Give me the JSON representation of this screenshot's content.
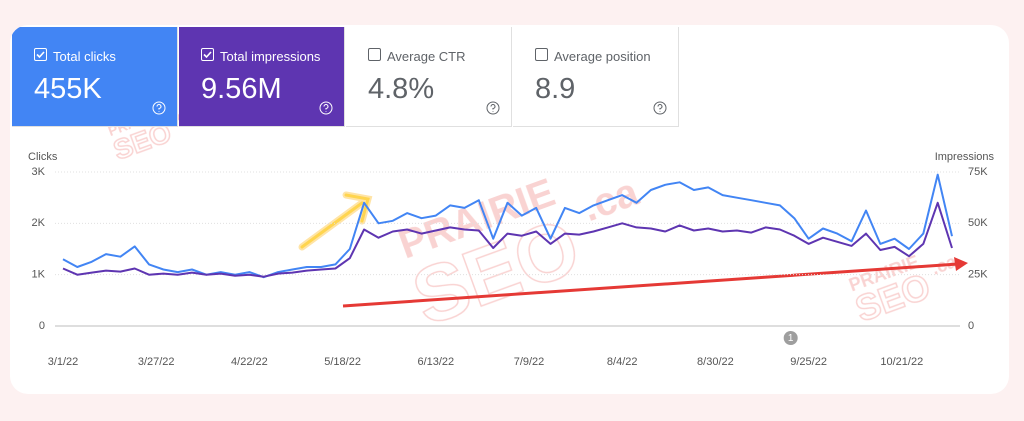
{
  "cards": [
    {
      "label": "Total clicks",
      "value": "455K",
      "selected": true,
      "color": "#4285f4"
    },
    {
      "label": "Total impressions",
      "value": "9.56M",
      "selected": true,
      "color": "#5e35b1"
    },
    {
      "label": "Average CTR",
      "value": "4.8%",
      "selected": false,
      "color": "#ffffff"
    },
    {
      "label": "Average position",
      "value": "8.9",
      "selected": false,
      "color": "#ffffff"
    }
  ],
  "chart_data": {
    "type": "line",
    "y_label": "Clicks",
    "y2_label": "Impressions",
    "x": [
      "3/1/22",
      "3/5/22",
      "3/9/22",
      "3/13/22",
      "3/17/22",
      "3/21/22",
      "3/25/22",
      "3/29/22",
      "4/2/22",
      "4/6/22",
      "4/10/22",
      "4/14/22",
      "4/18/22",
      "4/22/22",
      "4/26/22",
      "4/30/22",
      "5/4/22",
      "5/8/22",
      "5/12/22",
      "5/16/22",
      "5/20/22",
      "5/24/22",
      "5/28/22",
      "6/1/22",
      "6/5/22",
      "6/9/22",
      "6/13/22",
      "6/17/22",
      "6/21/22",
      "6/25/22",
      "6/29/22",
      "7/3/22",
      "7/7/22",
      "7/11/22",
      "7/15/22",
      "7/19/22",
      "7/23/22",
      "7/27/22",
      "7/31/22",
      "8/4/22",
      "8/8/22",
      "8/12/22",
      "8/16/22",
      "8/20/22",
      "8/24/22",
      "8/28/22",
      "9/1/22",
      "9/5/22",
      "9/9/22",
      "9/13/22",
      "9/17/22",
      "9/21/22",
      "9/25/22",
      "9/29/22",
      "10/3/22",
      "10/7/22",
      "10/11/22",
      "10/15/22",
      "10/19/22",
      "10/23/22",
      "10/27/22",
      "10/31/22",
      "11/4/22"
    ],
    "xlim": [
      "3/1/22",
      "11/4/22"
    ],
    "xticks": [
      "3/1/22",
      "3/27/22",
      "4/22/22",
      "5/18/22",
      "6/13/22",
      "7/9/22",
      "8/4/22",
      "8/30/22",
      "9/25/22",
      "10/21/22"
    ],
    "ylim": [
      0,
      3000
    ],
    "yticks": [
      0,
      {
        "value": 1000,
        "label": "1K"
      },
      {
        "value": 2000,
        "label": "2K"
      },
      {
        "value": 3000,
        "label": "3K"
      }
    ],
    "y2lim": [
      0,
      75000
    ],
    "y2ticks": [
      0,
      {
        "value": 25000,
        "label": "25K"
      },
      {
        "value": 50000,
        "label": "50K"
      },
      {
        "value": 75000,
        "label": "75K"
      }
    ],
    "grid": true,
    "series": [
      {
        "name": "Total clicks",
        "color": "#4285f4",
        "values": [
          1300,
          1150,
          1250,
          1400,
          1350,
          1550,
          1200,
          1100,
          1050,
          1100,
          1000,
          1050,
          1000,
          1050,
          950,
          1050,
          1100,
          1150,
          1150,
          1200,
          1500,
          2400,
          2000,
          2050,
          2200,
          2100,
          2150,
          2350,
          2300,
          2450,
          1700,
          2400,
          2150,
          2300,
          1700,
          2300,
          2200,
          2350,
          2450,
          2550,
          2400,
          2650,
          2750,
          2800,
          2650,
          2700,
          2550,
          2500,
          2450,
          2400,
          2350,
          2100,
          1700,
          1900,
          1800,
          1650,
          2250,
          1600,
          1700,
          1500,
          1800,
          2950,
          1750
        ]
      },
      {
        "name": "Total impressions",
        "color": "#5e35b1",
        "axis": "y2",
        "values": [
          28000,
          25000,
          26000,
          27000,
          26500,
          28000,
          25000,
          25500,
          25000,
          26000,
          25000,
          25500,
          24500,
          25000,
          24000,
          25500,
          26000,
          27000,
          27500,
          28000,
          33000,
          47000,
          43000,
          46000,
          47000,
          45000,
          46500,
          48000,
          47000,
          46500,
          38000,
          45000,
          44000,
          46000,
          40000,
          45000,
          44500,
          46000,
          48000,
          50000,
          48000,
          47500,
          46000,
          49000,
          46500,
          47500,
          46000,
          46500,
          45500,
          48000,
          47000,
          44000,
          40000,
          43000,
          41000,
          39000,
          45000,
          37000,
          38500,
          34000,
          40000,
          60000,
          38000
        ]
      }
    ],
    "annotation": {
      "x": "9/20/22",
      "label": "1"
    },
    "watermark": [
      "PRAIRIE",
      "SEO",
      ".ca"
    ]
  }
}
